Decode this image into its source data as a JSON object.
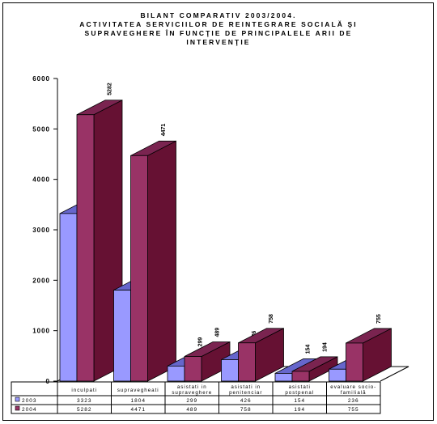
{
  "chart_data": {
    "type": "bar",
    "title_lines": [
      "BILANT COMPARATIV 2003/2004.",
      "ACTIVITATEA SERVICIILOR DE REINTEGRARE SOCIALĂ ŞI",
      "SUPRAVEGHERE ÎN FUNCŢIE DE PRINCIPALELE ARII DE",
      "INTERVENŢIE"
    ],
    "categories": [
      [
        "inculpati"
      ],
      [
        "supravegheati"
      ],
      [
        "asistati in",
        "supraveghere"
      ],
      [
        "asistati in",
        "penitenciar"
      ],
      [
        "asistati",
        "postpenal"
      ],
      [
        "evaluare socio-",
        "familială"
      ]
    ],
    "series": [
      {
        "name": "2003",
        "values": [
          3323,
          1804,
          299,
          426,
          154,
          236
        ],
        "color": "#9999ff",
        "top_color": "#6666cc",
        "side_color": "#7777d8"
      },
      {
        "name": "2004",
        "values": [
          5282,
          4471,
          489,
          758,
          194,
          755
        ],
        "color": "#993366",
        "top_color": "#7a2450",
        "side_color": "#661133"
      }
    ],
    "ylim": [
      0,
      6000
    ],
    "yticks": [
      0,
      1000,
      2000,
      3000,
      4000,
      5000,
      6000
    ],
    "ytick_labels": [
      "0",
      "1000",
      "2000",
      "3000",
      "4000",
      "5000",
      "6000"
    ],
    "grid": false,
    "legend": "data-table",
    "table_rows": [
      {
        "label": "2003",
        "cells": [
          "3323",
          "1804",
          "299",
          "426",
          "154",
          "236"
        ]
      },
      {
        "label": "2004",
        "cells": [
          "5282",
          "4471",
          "489",
          "758",
          "194",
          "755"
        ]
      }
    ]
  }
}
